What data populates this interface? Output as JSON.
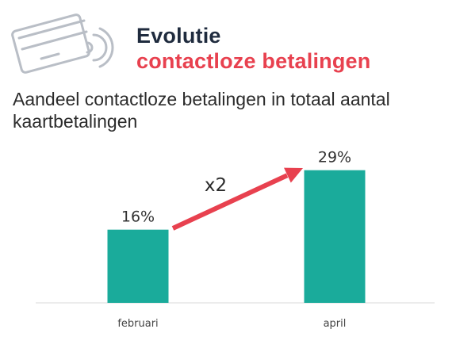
{
  "header": {
    "title_line1": "Evolutie",
    "title_line2": "contactloze betalingen",
    "subtitle": "Aandeel contactloze betalingen in totaal aantal kaartbetalingen"
  },
  "icons": {
    "card": "contactless-card-icon"
  },
  "colors": {
    "bar": "#1aab9b",
    "arrow": "#e8414f",
    "title_accent": "#e8414f",
    "title_dark": "#1f2b3e"
  },
  "chart_data": {
    "type": "bar",
    "categories": [
      "februari",
      "april"
    ],
    "values": [
      16,
      29
    ],
    "data_labels": [
      "16%",
      "29%"
    ],
    "ylim": [
      0,
      32
    ],
    "annotation": "x2"
  }
}
